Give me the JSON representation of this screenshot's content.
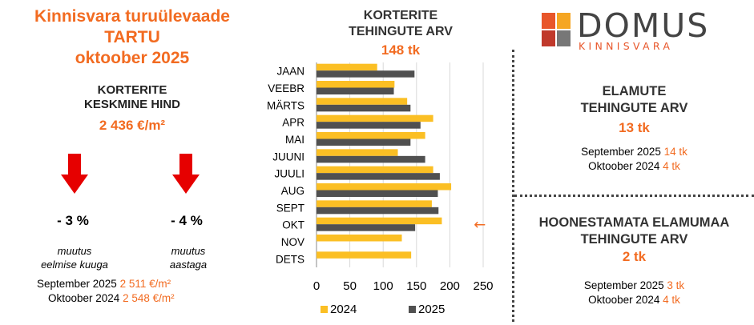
{
  "left": {
    "title_line1": "Kinnisvara turuülevaade",
    "title_line2": "TARTU",
    "title_line3": "oktoober 2025",
    "subtitle_line1": "KORTERITE",
    "subtitle_line2": "KESKMINE HIND",
    "price": "2 436 €/m²",
    "change_month": "- 3 %",
    "change_month_label_1": "muutus",
    "change_month_label_2": "eelmise kuuga",
    "change_year": "- 4 %",
    "change_year_label_1": "muutus",
    "change_year_label_2": "aastaga",
    "cmp1_label": "September 2025",
    "cmp1_value": "2 511 €/m²",
    "cmp2_label": "Oktoober 2024",
    "cmp2_value": "2 548 €/m²"
  },
  "chart_title_line1": "KORTERITE",
  "chart_title_line2": "TEHINGUTE ARV",
  "chart_total": "148 tk",
  "chart_data": {
    "type": "bar",
    "orientation": "horizontal",
    "categories": [
      "JAAN",
      "VEEBR",
      "MÄRTS",
      "APR",
      "MAI",
      "JUUNI",
      "JUULI",
      "AUG",
      "SEPT",
      "OKT",
      "NOV",
      "DETS"
    ],
    "series": [
      {
        "name": "2024",
        "color": "#fbbf24",
        "values": [
          91,
          117,
          136,
          175,
          163,
          122,
          175,
          202,
          173,
          188,
          128,
          142
        ]
      },
      {
        "name": "2025",
        "color": "#505050",
        "values": [
          147,
          116,
          141,
          156,
          141,
          163,
          185,
          182,
          183,
          148,
          null,
          null
        ]
      }
    ],
    "xlim": [
      0,
      250
    ],
    "xticks": [
      "0",
      "50",
      "100",
      "150",
      "200",
      "250"
    ],
    "grid": true,
    "legend": "bottom",
    "annotation": "←",
    "annotation_category": "OKT",
    "accent": "#f26b21"
  },
  "right": {
    "block1_title_line1": "ELAMUTE",
    "block1_title_line2": "TEHINGUTE ARV",
    "block1_value": "13 tk",
    "block1_cmp1_label": "September 2025",
    "block1_cmp1_value": "14 tk",
    "block1_cmp2_label": "Oktoober 2024",
    "block1_cmp2_value": "4 tk",
    "block2_title_line1": "HOONESTAMATA ELAMUMAA",
    "block2_title_line2": "TEHINGUTE ARV",
    "block2_value": "2 tk",
    "block2_cmp1_label": "September 2025",
    "block2_cmp1_value": "3 tk",
    "block2_cmp2_label": "Oktoober 2024",
    "block2_cmp2_value": "4 tk"
  },
  "logo": {
    "name": "DOMUS",
    "tagline": "KINNISVARA",
    "colors": [
      "#e8562a",
      "#f5a623",
      "#777777",
      "#c0392b"
    ]
  }
}
